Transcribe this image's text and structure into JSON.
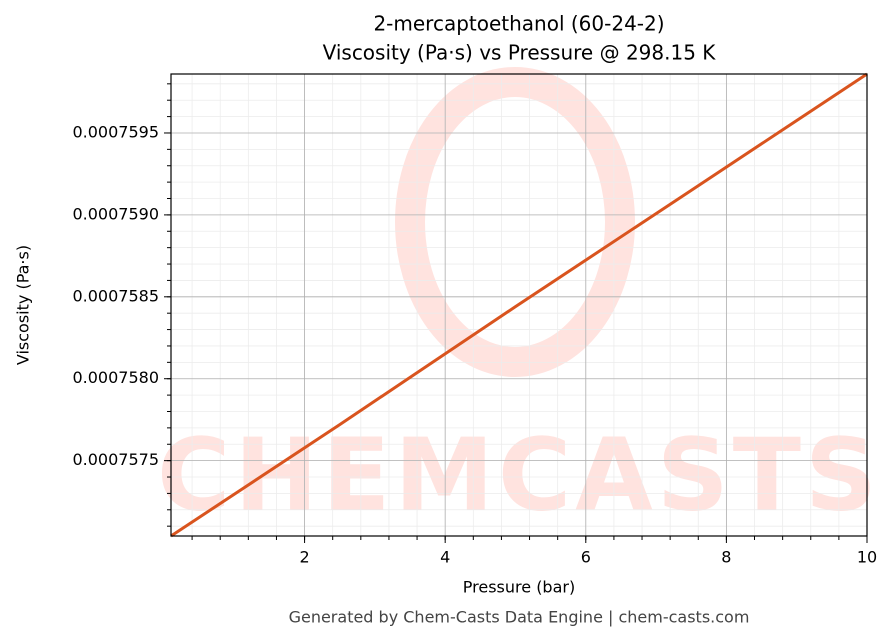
{
  "chart_data": {
    "type": "line",
    "title": "2-mercaptoethanol (60-24-2)",
    "subtitle": "Viscosity (Pa·s) vs Pressure @ 298.15 K",
    "x_label": "Pressure (bar)",
    "y_label": "Viscosity (Pa·s)",
    "footer": "Generated by Chem-Casts Data Engine | chem-casts.com",
    "watermark": "CHEMCASTS",
    "x": [
      0.1,
      2.5,
      5,
      7.5,
      10
    ],
    "series": [
      {
        "name": "Viscosity",
        "color": "#d9541e",
        "values": [
          0.00075704,
          0.00075772,
          0.00075844,
          0.00075915,
          0.00075986
        ]
      }
    ],
    "xlim": [
      0.1,
      10
    ],
    "ylim": [
      0.00075704,
      0.00075986
    ],
    "xticks": [
      2,
      4,
      6,
      8,
      10
    ],
    "yticks": [
      0.0007575,
      {
        "value": 0.000758,
        "label": "0.0007580"
      },
      0.0007585,
      {
        "value": 0.000759,
        "label": "0.0007590"
      },
      0.0007595
    ],
    "grid": true,
    "minor_grid": true
  }
}
